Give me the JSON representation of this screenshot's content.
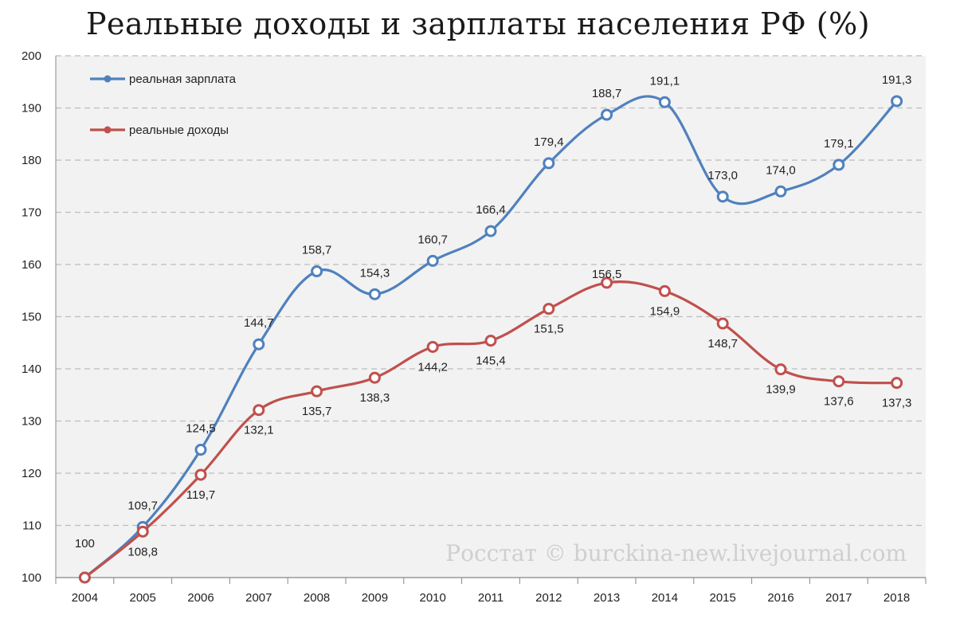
{
  "chart_data": {
    "type": "line",
    "title": "Реальные доходы и зарплаты населения РФ (%)",
    "categories": [
      "2004",
      "2005",
      "2006",
      "2007",
      "2008",
      "2009",
      "2010",
      "2011",
      "2012",
      "2013",
      "2014",
      "2015",
      "2016",
      "2017",
      "2018"
    ],
    "ylim": [
      100,
      200
    ],
    "yticks": [
      100,
      110,
      120,
      130,
      140,
      150,
      160,
      170,
      180,
      190,
      200
    ],
    "grid": true,
    "legend_position": "top-left",
    "series": [
      {
        "name": "реальная зарплата",
        "color": "#4f81bd",
        "values": [
          100,
          109.7,
          124.5,
          144.7,
          158.7,
          154.3,
          160.7,
          166.4,
          179.4,
          188.7,
          191.1,
          173.0,
          174.0,
          179.1,
          191.3
        ],
        "labels": [
          "100",
          "109,7",
          "124,5",
          "144,7",
          "158,7",
          "154,3",
          "160,7",
          "166,4",
          "179,4",
          "188,7",
          "191,1",
          "173,0",
          "174,0",
          "179,1",
          "191,3"
        ]
      },
      {
        "name": "реальные доходы",
        "color": "#c0504d",
        "values": [
          100,
          108.8,
          119.7,
          132.1,
          135.7,
          138.3,
          144.2,
          145.4,
          151.5,
          156.5,
          154.9,
          148.7,
          139.9,
          137.6,
          137.3
        ],
        "labels": [
          "",
          "108,8",
          "119,7",
          "132,1",
          "135,7",
          "138,3",
          "144,2",
          "145,4",
          "151,5",
          "156,5",
          "154,9",
          "148,7",
          "139,9",
          "137,6",
          "137,3"
        ]
      }
    ],
    "watermark": "Росстат © burckina-new.livejournal.com"
  }
}
